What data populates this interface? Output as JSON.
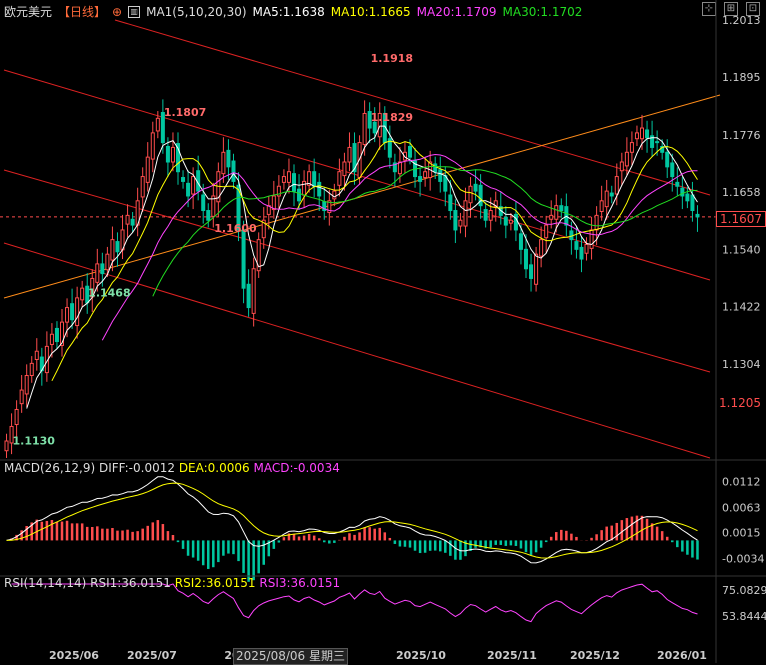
{
  "header": {
    "instrument": "欧元美元",
    "period": "【日线】",
    "ma_label": "MA1(5,10,20,30)",
    "ma5": "MA5:1.1638",
    "ma10": "MA10:1.1665",
    "ma20": "MA20:1.1709",
    "ma30": "MA30:1.1702"
  },
  "macd_header": {
    "title": "MACD(26,12,9)",
    "diff": "DIFF:-0.0012",
    "dea": "DEA:0.0006",
    "macd": "MACD:-0.0034"
  },
  "rsi_header": {
    "title": "RSI(14,14,14)",
    "rsi1": "RSI1:36.0151",
    "rsi2": "RSI2:36.0151",
    "rsi3": "RSI3:36.0151"
  },
  "cursor_date": "2025/08/06 星期三",
  "last_price_tag": "1.1607",
  "level_tag": "1.1205",
  "colors": {
    "up": "#ff4d4d",
    "down": "#00c6a0",
    "ma5": "#ffffff",
    "ma10": "#ffff00",
    "ma20": "#ff44ff",
    "ma30": "#22dd22",
    "trend_red": "#dd2222",
    "trend_orange": "#ff8c1a"
  },
  "chart_data": [
    {
      "type": "candlestick",
      "title": "欧元美元",
      "x_tick_labels": [
        "2025/06",
        "2025/07",
        "20",
        "2025/10",
        "2025/11",
        "2025/12",
        "2026/01"
      ],
      "y_tick_labels": [
        "1.2013",
        "1.1895",
        "1.1776",
        "1.1658",
        "1.1540",
        "1.1422",
        "1.1304"
      ],
      "ylim": [
        1.111,
        1.2025
      ],
      "annotations": [
        {
          "text": "1.1130",
          "value": 1.113
        },
        {
          "text": "1.1829",
          "value": 1.1829
        },
        {
          "text": "1.1918",
          "value": 1.1918
        },
        {
          "text": "1.1468",
          "value": 1.1468
        },
        {
          "text": "1.1807",
          "value": 1.1807
        },
        {
          "text": "1.1600",
          "value": 1.16
        }
      ],
      "close": [
        1.1145,
        1.1175,
        1.121,
        1.125,
        1.128,
        1.1305,
        1.133,
        1.129,
        1.134,
        1.1365,
        1.135,
        1.139,
        1.142,
        1.1395,
        1.144,
        1.146,
        1.143,
        1.148,
        1.151,
        1.149,
        1.153,
        1.156,
        1.1535,
        1.158,
        1.161,
        1.159,
        1.164,
        1.169,
        1.173,
        1.178,
        1.181,
        1.176,
        1.172,
        1.175,
        1.17,
        1.168,
        1.165,
        1.169,
        1.166,
        1.162,
        1.16,
        1.165,
        1.17,
        1.174,
        1.171,
        1.168,
        1.158,
        1.146,
        1.142,
        1.15,
        1.156,
        1.16,
        1.163,
        1.165,
        1.167,
        1.169,
        1.17,
        1.166,
        1.164,
        1.168,
        1.17,
        1.167,
        1.165,
        1.162,
        1.164,
        1.166,
        1.17,
        1.172,
        1.175,
        1.17,
        1.176,
        1.182,
        1.179,
        1.178,
        1.182,
        1.176,
        1.173,
        1.17,
        1.172,
        1.174,
        1.173,
        1.169,
        1.168,
        1.17,
        1.172,
        1.17,
        1.168,
        1.166,
        1.162,
        1.158,
        1.16,
        1.164,
        1.167,
        1.166,
        1.163,
        1.16,
        1.162,
        1.164,
        1.161,
        1.159,
        1.16,
        1.158,
        1.154,
        1.15,
        1.148,
        1.153,
        1.156,
        1.159,
        1.161,
        1.163,
        1.162,
        1.159,
        1.156,
        1.154,
        1.152,
        1.155,
        1.158,
        1.161,
        1.164,
        1.166,
        1.165,
        1.169,
        1.172,
        1.174,
        1.176,
        1.178,
        1.179,
        1.177,
        1.175,
        1.176,
        1.174,
        1.171,
        1.169,
        1.167,
        1.165,
        1.164,
        1.162,
        1.1607
      ],
      "series": [
        {
          "name": "MA5",
          "value": 1.1638
        },
        {
          "name": "MA10",
          "value": 1.1665
        },
        {
          "name": "MA20",
          "value": 1.1709
        },
        {
          "name": "MA30",
          "value": 1.1702
        }
      ]
    },
    {
      "type": "bar",
      "title": "MACD(26,12,9)",
      "y_tick_labels": [
        "0.0112",
        "0.0063",
        "0.0015",
        "-0.0034"
      ],
      "ylim": [
        -0.006,
        0.013
      ],
      "series": [
        {
          "name": "DIFF",
          "value": -0.0012
        },
        {
          "name": "DEA",
          "value": 0.0006
        },
        {
          "name": "MACD",
          "value": -0.0034
        }
      ]
    },
    {
      "type": "line",
      "title": "RSI(14,14,14)",
      "y_tick_labels": [
        "75.0829",
        "53.8444"
      ],
      "series": [
        {
          "name": "RSI1",
          "value": 36.0151
        },
        {
          "name": "RSI2",
          "value": 36.0151
        },
        {
          "name": "RSI3",
          "value": 36.0151
        }
      ]
    }
  ]
}
